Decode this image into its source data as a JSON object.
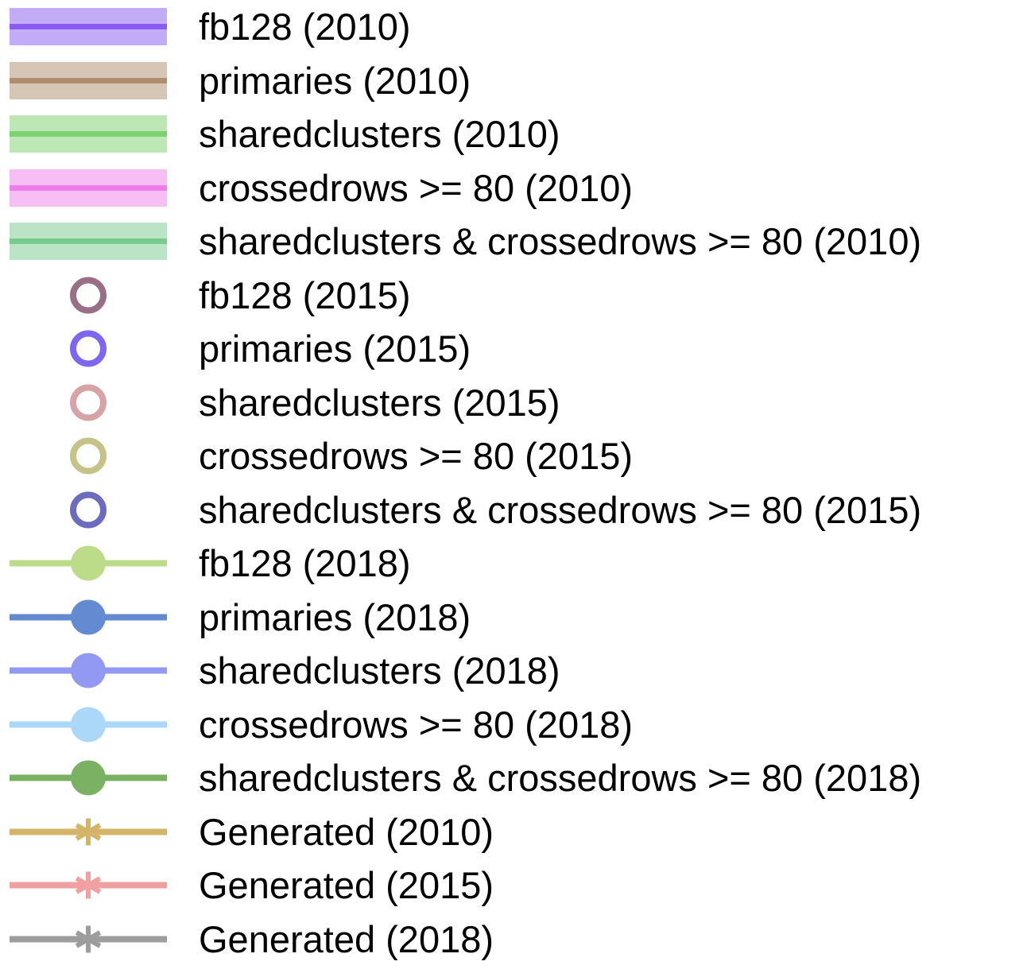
{
  "chart_data": {
    "type": "legend",
    "legend": [
      {
        "label": "fb128 (2010)",
        "kind": "band",
        "color": "#7b47ee"
      },
      {
        "label": "primaries (2010)",
        "kind": "band",
        "color": "#a4805e"
      },
      {
        "label": "sharedclusters (2010)",
        "kind": "band",
        "color": "#6ccc5c"
      },
      {
        "label": "crossedrows >= 80 (2010)",
        "kind": "band",
        "color": "#ee6ce8"
      },
      {
        "label": "sharedclusters & crossedrows >= 80 (2010)",
        "kind": "band",
        "color": "#66c47e"
      },
      {
        "label": "fb128 (2015)",
        "kind": "ring",
        "color": "#9a6e86"
      },
      {
        "label": "primaries (2015)",
        "kind": "ring",
        "color": "#7f66f2"
      },
      {
        "label": "sharedclusters (2015)",
        "kind": "ring",
        "color": "#d7a3a4"
      },
      {
        "label": "crossedrows >= 80 (2015)",
        "kind": "ring",
        "color": "#c5c388"
      },
      {
        "label": "sharedclusters & crossedrows >= 80 (2015)",
        "kind": "ring",
        "color": "#6b6cc0"
      },
      {
        "label": "fb128 (2018)",
        "kind": "line-dot",
        "color": "#bcdc89"
      },
      {
        "label": "primaries (2018)",
        "kind": "line-dot",
        "color": "#648bd2"
      },
      {
        "label": "sharedclusters (2018)",
        "kind": "line-dot",
        "color": "#9199f2"
      },
      {
        "label": "crossedrows >= 80 (2018)",
        "kind": "line-dot",
        "color": "#abd8f8"
      },
      {
        "label": "sharedclusters & crossedrows >= 80 (2018)",
        "kind": "line-dot",
        "color": "#7bb162"
      },
      {
        "label": "Generated (2010)",
        "kind": "line-star",
        "color": "#d3b468"
      },
      {
        "label": "Generated (2015)",
        "kind": "line-star",
        "color": "#f0a0a0"
      },
      {
        "label": "Generated (2018)",
        "kind": "line-star",
        "color": "#9d9d9d"
      }
    ]
  }
}
